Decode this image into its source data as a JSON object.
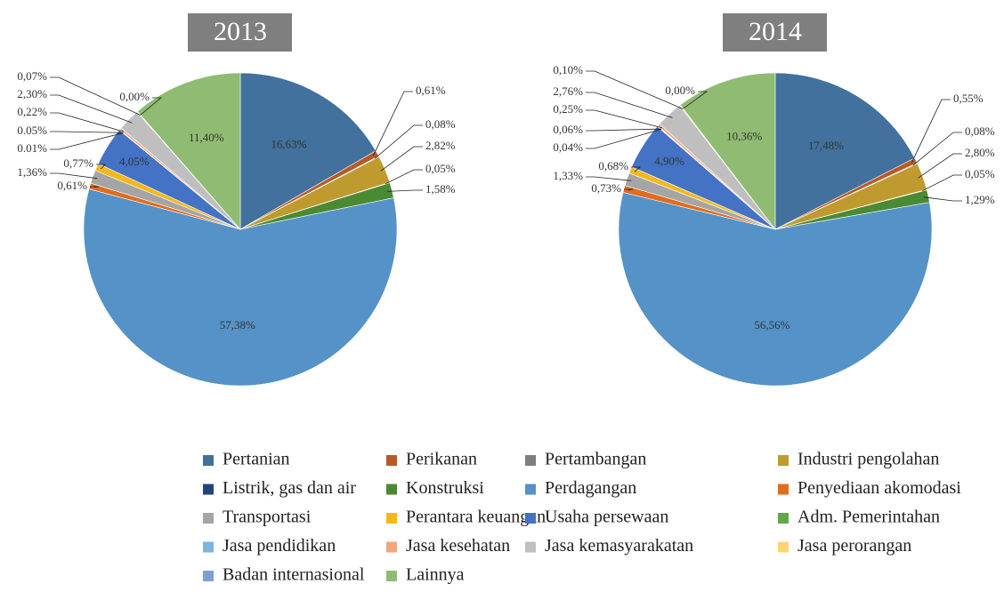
{
  "chart_data": {
    "type": "pie",
    "categories": [
      "Pertanian",
      "Perikanan",
      "Pertambangan",
      "Industri pengolahan",
      "Listrik, gas dan air",
      "Konstruksi",
      "Perdagangan",
      "Penyediaan akomodasi",
      "Transportasi",
      "Perantara keuangan",
      "Usaha persewaan",
      "Adm. Pemerintahan",
      "Jasa pendidikan",
      "Jasa kesehatan",
      "Jasa kemasyarakatan",
      "Jasa perorangan",
      "Badan internasional",
      "Lainnya"
    ],
    "colors": [
      "#41719c",
      "#b85a27",
      "#7f7f7f",
      "#bf9a2e",
      "#264478",
      "#4a8a32",
      "#5592c8",
      "#e06c1f",
      "#a5a5a5",
      "#f2b81d",
      "#4472c4",
      "#62a846",
      "#7fb3e0",
      "#f4a47e",
      "#bfbfbf",
      "#ffd571",
      "#7f9fd4",
      "#8fbc72"
    ],
    "series": [
      {
        "name": "2013",
        "values": [
          16.63,
          0.61,
          0.08,
          2.82,
          0.05,
          1.58,
          57.38,
          0.61,
          1.36,
          0.77,
          4.05,
          0.01,
          0.05,
          0.22,
          2.3,
          0.07,
          0.0,
          11.4
        ],
        "value_labels": [
          "16,63%",
          "0,61%",
          "0,08%",
          "2,82%",
          "0,05%",
          "1,58%",
          "57,38%",
          "0,61%",
          "1,36%",
          "0,77%",
          "4,05%",
          "0.01%",
          "0.05%",
          "0,22%",
          "2,30%",
          "0,07%",
          "0,00%",
          "11,40%"
        ]
      },
      {
        "name": "2014",
        "values": [
          17.48,
          0.55,
          0.08,
          2.8,
          0.05,
          1.29,
          56.56,
          0.73,
          1.33,
          0.68,
          4.9,
          0.04,
          0.06,
          0.25,
          2.76,
          0.1,
          0.0,
          10.36
        ],
        "value_labels": [
          "17,48%",
          "0,55%",
          "0,08%",
          "2,80%",
          "0,05%",
          "1,29%",
          "56,56%",
          "0,73%",
          "1,33%",
          "0,68%",
          "4,90%",
          "0,04%",
          "0,06%",
          "0,25%",
          "2,76%",
          "0,10%",
          "0,00%",
          "10,36%"
        ]
      }
    ]
  }
}
